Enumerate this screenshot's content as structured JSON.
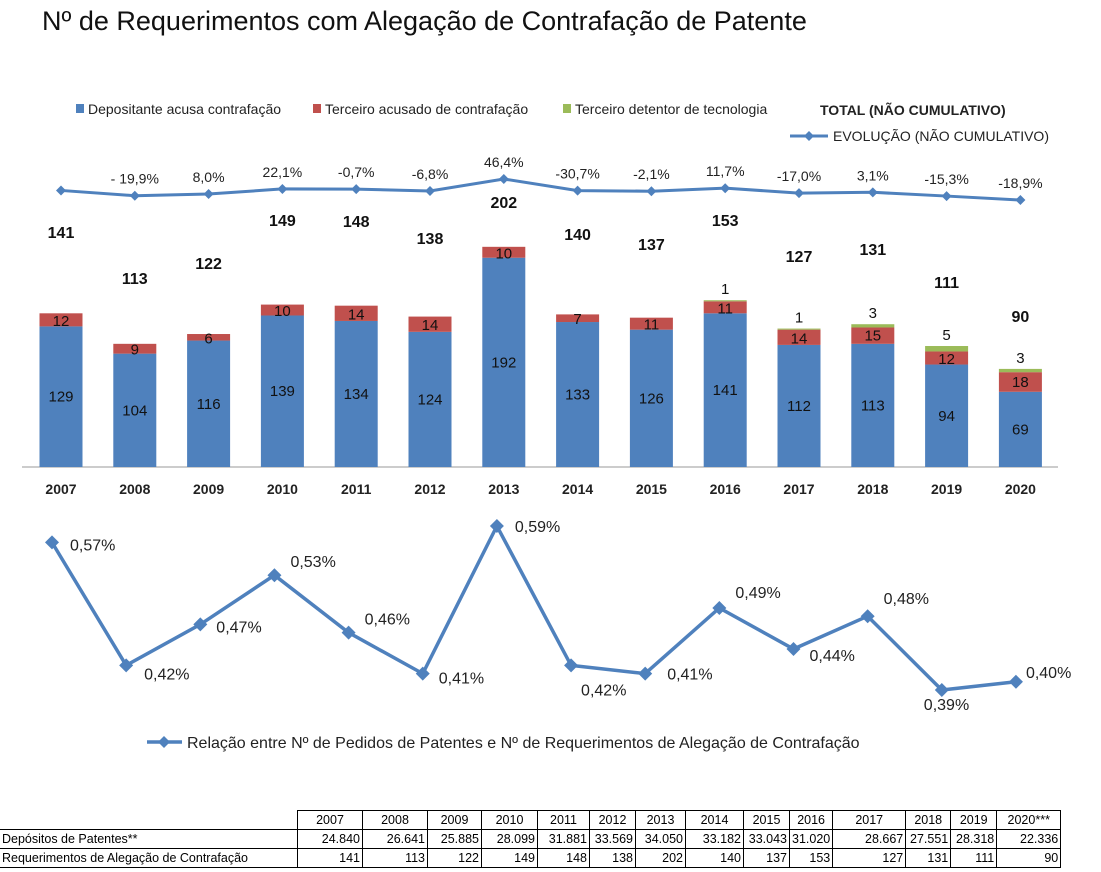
{
  "title": "Nº de Requerimentos com Alegação de Contrafação de Patente",
  "chart_data": [
    {
      "type": "bar",
      "stacked": true,
      "categories": [
        "2007",
        "2008",
        "2009",
        "2010",
        "2011",
        "2012",
        "2013",
        "2014",
        "2015",
        "2016",
        "2017",
        "2018",
        "2019",
        "2020"
      ],
      "series": [
        {
          "name": "Depositante acusa contrafação",
          "color": "#4F81BD",
          "values": [
            129,
            104,
            116,
            139,
            134,
            124,
            192,
            133,
            126,
            141,
            112,
            113,
            94,
            69
          ]
        },
        {
          "name": "Terceiro acusado de contrafação",
          "color": "#C0504D",
          "values": [
            12,
            9,
            6,
            10,
            14,
            14,
            10,
            7,
            11,
            11,
            14,
            15,
            12,
            18
          ]
        },
        {
          "name": "Terceiro detentor de tecnologia",
          "color": "#9BBB59",
          "values": [
            0,
            0,
            0,
            0,
            0,
            0,
            0,
            0,
            0,
            1,
            1,
            3,
            5,
            3
          ]
        }
      ],
      "totals_label": "TOTAL (NÃO CUMULATIVO)",
      "totals": [
        141,
        113,
        122,
        149,
        148,
        138,
        202,
        140,
        137,
        153,
        127,
        131,
        111,
        90
      ],
      "line": {
        "name": "EVOLUÇÃO (NÃO CUMULATIVO)",
        "color": "#4F81BD",
        "labels": [
          "",
          "- 19,9%",
          "8,0%",
          "22,1%",
          "-0,7%",
          "-6,8%",
          "46,4%",
          "-30,7%",
          "-2,1%",
          "11,7%",
          "-17,0%",
          "3,1%",
          "-15,3%",
          "-18,9%"
        ]
      },
      "legend_position": "top",
      "grid": false
    },
    {
      "type": "line",
      "categories": [
        "2007",
        "2008",
        "2009",
        "2010",
        "2011",
        "2012",
        "2013",
        "2014",
        "2015",
        "2016",
        "2017",
        "2018",
        "2019",
        "2020"
      ],
      "series": [
        {
          "name": "Relação entre Nº de Pedidos de Patentes e Nº de Requerimentos de Alegação de Contrafação",
          "color": "#4F81BD",
          "values": [
            0.57,
            0.42,
            0.47,
            0.53,
            0.46,
            0.41,
            0.59,
            0.42,
            0.41,
            0.49,
            0.44,
            0.48,
            0.39,
            0.4
          ],
          "labels": [
            "0,57%",
            "0,42%",
            "0,47%",
            "0,53%",
            "0,46%",
            "0,41%",
            "0,59%",
            "0,42%",
            "0,41%",
            "0,49%",
            "0,44%",
            "0,48%",
            "0,39%",
            "0,40%"
          ]
        }
      ],
      "legend_position": "bottom",
      "grid": false
    },
    {
      "type": "table",
      "columns": [
        "2007",
        "2008",
        "2009",
        "2010",
        "2011",
        "2012",
        "2013",
        "2014",
        "2015",
        "2016",
        "2017",
        "2018",
        "2019",
        "2020***"
      ],
      "rows": [
        {
          "label": "Depósitos de Patentes**",
          "values": [
            "24.840",
            "26.641",
            "25.885",
            "28.099",
            "31.881",
            "33.569",
            "34.050",
            "33.182",
            "33.043",
            "31.020",
            "28.667",
            "27.551",
            "28.318",
            "22.336"
          ]
        },
        {
          "label": "Requerimentos de Alegação de Contrafação",
          "values": [
            "141",
            "113",
            "122",
            "149",
            "148",
            "138",
            "202",
            "140",
            "137",
            "153",
            "127",
            "131",
            "111",
            "90"
          ]
        }
      ]
    }
  ]
}
